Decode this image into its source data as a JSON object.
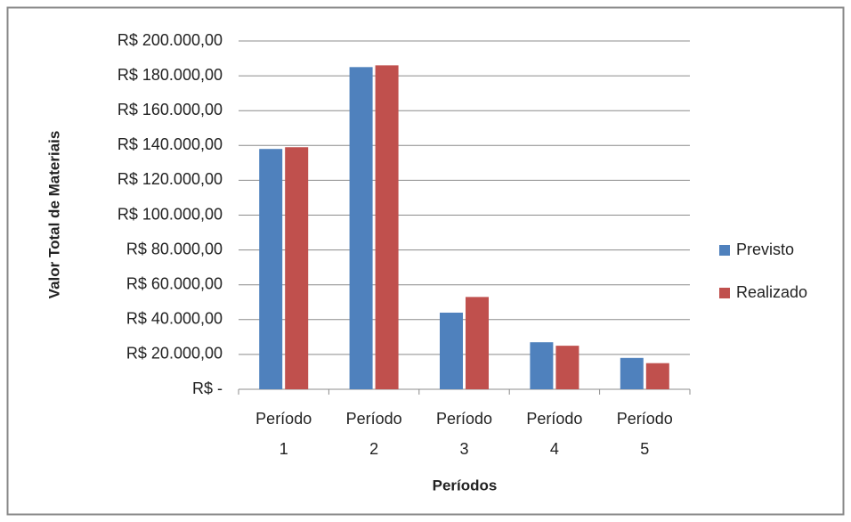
{
  "chart_data": {
    "type": "bar",
    "y_axis_label": "Valor Total de Materiais",
    "x_axis_label": "Períodos",
    "categories": [
      "Período 1",
      "Período 2",
      "Período 3",
      "Período 4",
      "Período 5"
    ],
    "series": [
      {
        "name": "Previsto",
        "color": "#4f81bd",
        "values": [
          138000,
          185000,
          44000,
          27000,
          18000
        ]
      },
      {
        "name": "Realizado",
        "color": "#c0504d",
        "values": [
          139000,
          186000,
          53000,
          25000,
          15000
        ]
      }
    ],
    "ylim": [
      0,
      200000
    ],
    "yticks": [
      {
        "value": 0,
        "label": "R$ -"
      },
      {
        "value": 20000,
        "label": "R$ 20.000,00"
      },
      {
        "value": 40000,
        "label": "R$ 40.000,00"
      },
      {
        "value": 60000,
        "label": "R$ 60.000,00"
      },
      {
        "value": 80000,
        "label": "R$ 80.000,00"
      },
      {
        "value": 100000,
        "label": "R$ 100.000,00"
      },
      {
        "value": 120000,
        "label": "R$ 120.000,00"
      },
      {
        "value": 140000,
        "label": "R$ 140.000,00"
      },
      {
        "value": 160000,
        "label": "R$ 160.000,00"
      },
      {
        "value": 180000,
        "label": "R$ 180.000,00"
      },
      {
        "value": 200000,
        "label": "R$ 200.000,00"
      }
    ],
    "grid": true,
    "legend": "right"
  }
}
